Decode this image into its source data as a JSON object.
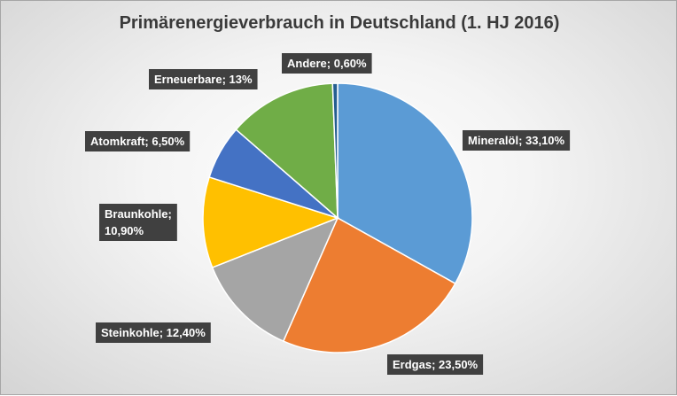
{
  "chart_data": {
    "type": "pie",
    "title": "Primärenergieverbrauch in Deutschland (1. HJ 2016)",
    "slices": [
      {
        "label": "Mineralöl",
        "value": 33.1,
        "text": "Mineralöl;  33,10%",
        "color": "#5b9bd5"
      },
      {
        "label": "Erdgas",
        "value": 23.5,
        "text": "Erdgas;  23,50%",
        "color": "#ed7d31"
      },
      {
        "label": "Steinkohle",
        "value": 12.4,
        "text": "Steinkohle; 12,40%",
        "color": "#a5a5a5"
      },
      {
        "label": "Braunkohle",
        "value": 10.9,
        "text": "Braunkohle;|10,90%",
        "color": "#ffc000"
      },
      {
        "label": "Atomkraft",
        "value": 6.5,
        "text": "Atomkraft; 6,50%",
        "color": "#4472c4"
      },
      {
        "label": "Erneuerbare",
        "value": 13,
        "text": "Erneuerbare; 13%",
        "color": "#70ad47"
      },
      {
        "label": "Andere",
        "value": 0.6,
        "text": "Andere; 0,60%",
        "color": "#255e91"
      }
    ],
    "legend": "none"
  }
}
